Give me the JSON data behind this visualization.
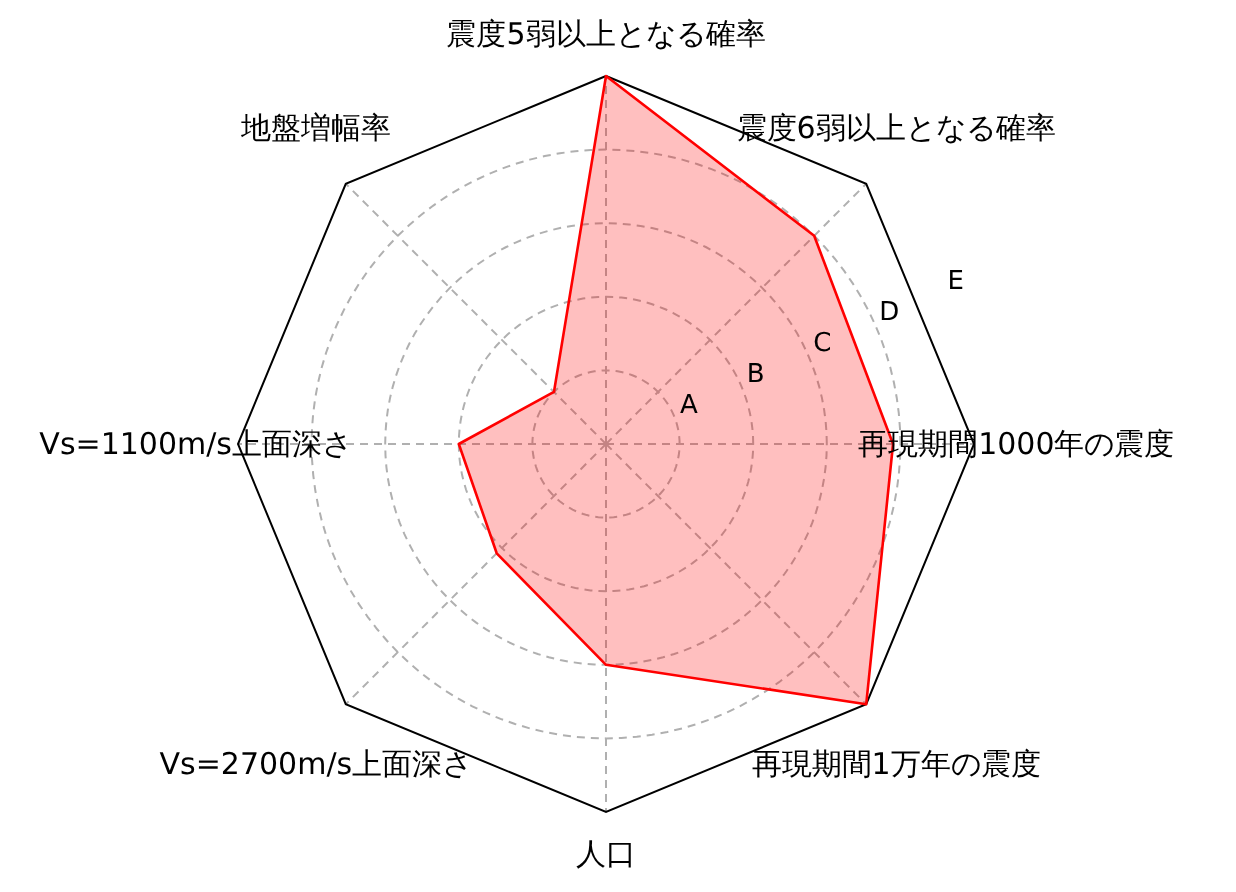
{
  "chart_data": {
    "type": "radar",
    "categories": [
      "震度5弱以上となる確率",
      "震度6弱以上となる確率",
      "再現期間1000年の震度",
      "再現期間1万年の震度",
      "人口",
      "Vs=2700m/s上面深さ",
      "Vs=1100m/s上面深さ",
      "地盤増幅率"
    ],
    "series": [
      {
        "color": "#ff0000",
        "values": [
          5,
          4,
          3.9,
          5,
          3,
          2.1,
          2,
          1
        ]
      }
    ],
    "ylim": [
      0,
      5
    ],
    "yticks": [
      {
        "value": 1,
        "label": "A"
      },
      {
        "value": 2,
        "label": "B"
      },
      {
        "value": 3,
        "label": "C"
      },
      {
        "value": 4,
        "label": "D"
      },
      {
        "value": 5,
        "label": "E"
      }
    ],
    "grid": true
  }
}
